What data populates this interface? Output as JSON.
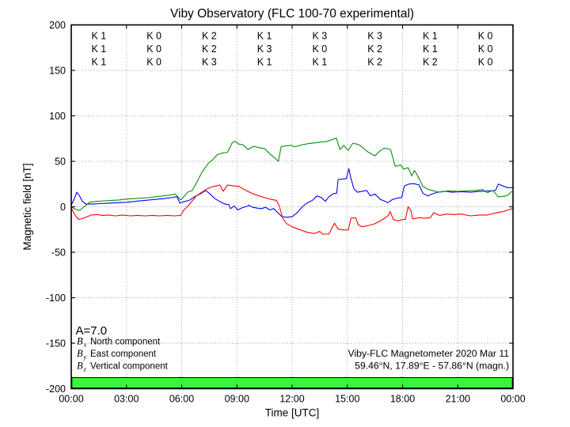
{
  "title": "Viby Observatory (FLC 100-70 experimental)",
  "axes": {
    "ylabel": "Magnetic field [nT]",
    "xlabel": "Time [UTC]",
    "yticks": [
      200,
      150,
      100,
      50,
      0,
      -50,
      -100,
      -150,
      -200
    ],
    "xticks": [
      "00:00",
      "03:00",
      "06:00",
      "09:00",
      "12:00",
      "15:00",
      "18:00",
      "21:00",
      "00:00"
    ],
    "ylim": [
      -200,
      200
    ],
    "xlim_hours": [
      0,
      24
    ],
    "grid": "dotted"
  },
  "k_indices": {
    "label_prefix": "K",
    "rows": [
      {
        "component": "Bx",
        "color": "#0000ff",
        "values": [
          1,
          0,
          2,
          1,
          3,
          3,
          1,
          0
        ]
      },
      {
        "component": "By",
        "color": "#ff0000",
        "values": [
          1,
          0,
          2,
          3,
          0,
          2,
          1,
          0
        ]
      },
      {
        "component": "Bz",
        "color": "#008a00",
        "values": [
          1,
          0,
          3,
          1,
          1,
          2,
          2,
          0
        ]
      }
    ]
  },
  "annotations": {
    "a_index": "A=7.0",
    "station_line1": "Viby-FLC Magnetometer 2020 Mar 11",
    "station_line2": "59.46°N, 17.89°E - 57.86°N (magn.)"
  },
  "legend": [
    {
      "symbol": "B",
      "sub": "x",
      "label": "North component",
      "color": "#0000ff"
    },
    {
      "symbol": "B",
      "sub": "y",
      "label": "East component",
      "color": "#ff0000"
    },
    {
      "symbol": "B",
      "sub": "z",
      "label": "Vertical component",
      "color": "#008a00"
    }
  ],
  "quality_bar": {
    "color": "#3df23d"
  },
  "colors": {
    "grid": "#999999",
    "frame": "#000000",
    "muted_text": "#909090"
  },
  "chart_data": {
    "type": "line",
    "title": "Viby Observatory (FLC 100-70 experimental)",
    "xlabel": "Time [UTC]",
    "ylabel": "Magnetic field [nT]",
    "xlim": [
      0,
      24
    ],
    "ylim": [
      -200,
      200
    ],
    "x_unit": "hours UTC",
    "legend_position": "lower left",
    "grid": "dotted",
    "series": [
      {
        "name": "Bx North component",
        "color": "#0000ff",
        "points": [
          [
            0,
            2
          ],
          [
            0.15,
            8
          ],
          [
            0.3,
            16
          ],
          [
            0.45,
            12
          ],
          [
            0.6,
            6
          ],
          [
            0.8,
            3
          ],
          [
            1.2,
            3
          ],
          [
            1.6,
            3.5
          ],
          [
            2,
            4
          ],
          [
            2.5,
            4.5
          ],
          [
            3,
            5
          ],
          [
            3.5,
            6
          ],
          [
            4,
            7
          ],
          [
            4.5,
            8
          ],
          [
            5,
            9
          ],
          [
            5.4,
            10
          ],
          [
            5.75,
            11
          ],
          [
            5.9,
            4
          ],
          [
            6.1,
            5.5
          ],
          [
            6.4,
            7
          ],
          [
            6.7,
            11
          ],
          [
            7,
            14
          ],
          [
            7.3,
            18
          ],
          [
            7.55,
            14
          ],
          [
            7.8,
            9
          ],
          [
            8.1,
            5.5
          ],
          [
            8.35,
            3
          ],
          [
            8.55,
            2.5
          ],
          [
            8.65,
            -2
          ],
          [
            8.85,
            1
          ],
          [
            9.05,
            -3.5
          ],
          [
            9.3,
            -1
          ],
          [
            9.55,
            0.5
          ],
          [
            9.65,
            1.7
          ],
          [
            9.85,
            -0.5
          ],
          [
            10.1,
            -1.5
          ],
          [
            10.35,
            -2
          ],
          [
            10.55,
            -0.5
          ],
          [
            10.8,
            -3.5
          ],
          [
            11,
            -2
          ],
          [
            11.2,
            -6
          ],
          [
            11.45,
            -11
          ],
          [
            11.7,
            -11.5
          ],
          [
            12,
            -11
          ],
          [
            12.3,
            -6
          ],
          [
            12.55,
            0
          ],
          [
            12.8,
            4
          ],
          [
            13.1,
            7
          ],
          [
            13.35,
            12
          ],
          [
            13.6,
            10
          ],
          [
            13.8,
            6
          ],
          [
            14,
            11
          ],
          [
            14.25,
            14.5
          ],
          [
            14.42,
            15
          ],
          [
            14.5,
            30
          ],
          [
            14.75,
            30.5
          ],
          [
            14.95,
            31
          ],
          [
            15.08,
            42
          ],
          [
            15.2,
            31
          ],
          [
            15.35,
            20
          ],
          [
            15.55,
            16
          ],
          [
            15.8,
            17
          ],
          [
            16.05,
            18
          ],
          [
            16.25,
            12
          ],
          [
            16.5,
            14
          ],
          [
            16.8,
            8
          ],
          [
            17.05,
            6
          ],
          [
            17.2,
            4.5
          ],
          [
            17.45,
            8
          ],
          [
            17.7,
            9.5
          ],
          [
            17.95,
            10
          ],
          [
            18.1,
            23
          ],
          [
            18.35,
            25
          ],
          [
            18.6,
            25.5
          ],
          [
            18.9,
            24
          ],
          [
            19.1,
            15
          ],
          [
            19.35,
            12
          ],
          [
            19.6,
            14
          ],
          [
            19.9,
            16
          ],
          [
            20.3,
            17
          ],
          [
            20.7,
            16
          ],
          [
            21.2,
            16.5
          ],
          [
            21.7,
            16
          ],
          [
            22.2,
            17
          ],
          [
            22.7,
            17.5
          ],
          [
            23.05,
            18
          ],
          [
            23.2,
            25
          ],
          [
            23.45,
            23
          ],
          [
            23.7,
            21
          ],
          [
            24,
            21
          ]
        ]
      },
      {
        "name": "By East component",
        "color": "#ff0000",
        "points": [
          [
            0,
            -1
          ],
          [
            0.2,
            -9
          ],
          [
            0.4,
            -14
          ],
          [
            0.6,
            -13
          ],
          [
            0.85,
            -11
          ],
          [
            1.1,
            -9
          ],
          [
            1.4,
            -8.5
          ],
          [
            1.7,
            -9.5
          ],
          [
            2,
            -9
          ],
          [
            2.4,
            -10
          ],
          [
            2.8,
            -9
          ],
          [
            3.2,
            -10
          ],
          [
            3.6,
            -9.5
          ],
          [
            4,
            -10
          ],
          [
            4.4,
            -9.5
          ],
          [
            4.8,
            -10
          ],
          [
            5.2,
            -9.5
          ],
          [
            5.6,
            -10
          ],
          [
            5.95,
            -9.5
          ],
          [
            6.1,
            -4
          ],
          [
            6.3,
            0
          ],
          [
            6.55,
            6
          ],
          [
            6.8,
            12
          ],
          [
            7.1,
            16
          ],
          [
            7.35,
            19.5
          ],
          [
            7.65,
            22
          ],
          [
            7.9,
            23
          ],
          [
            8.08,
            24
          ],
          [
            8.25,
            17
          ],
          [
            8.5,
            24
          ],
          [
            8.8,
            23
          ],
          [
            9.1,
            22.5
          ],
          [
            9.4,
            19
          ],
          [
            9.7,
            16
          ],
          [
            9.9,
            14
          ],
          [
            10.2,
            12
          ],
          [
            10.6,
            9.5
          ],
          [
            10.9,
            8
          ],
          [
            11.15,
            7
          ],
          [
            11.3,
            1
          ],
          [
            11.5,
            -13
          ],
          [
            11.7,
            -18.5
          ],
          [
            12,
            -22
          ],
          [
            12.4,
            -25
          ],
          [
            12.8,
            -28
          ],
          [
            13.2,
            -29.5
          ],
          [
            13.5,
            -27
          ],
          [
            13.65,
            -30
          ],
          [
            14,
            -30
          ],
          [
            14.3,
            -18
          ],
          [
            14.5,
            -24.5
          ],
          [
            14.8,
            -25.5
          ],
          [
            15.05,
            -25.5
          ],
          [
            15.2,
            -12.5
          ],
          [
            15.45,
            -12
          ],
          [
            15.6,
            -20
          ],
          [
            15.8,
            -22
          ],
          [
            16.05,
            -21
          ],
          [
            16.25,
            -20
          ],
          [
            16.45,
            -19
          ],
          [
            16.75,
            -16
          ],
          [
            17,
            -13
          ],
          [
            17.25,
            -9
          ],
          [
            17.32,
            -5
          ],
          [
            17.5,
            -14
          ],
          [
            17.75,
            -15.5
          ],
          [
            18,
            -14
          ],
          [
            18.15,
            -14
          ],
          [
            18.3,
            0
          ],
          [
            18.45,
            -4
          ],
          [
            18.55,
            -13.5
          ],
          [
            18.9,
            -12
          ],
          [
            19.2,
            -12.5
          ],
          [
            19.5,
            -12
          ],
          [
            19.7,
            -6.5
          ],
          [
            20,
            -9.5
          ],
          [
            20.4,
            -8
          ],
          [
            20.8,
            -8.5
          ],
          [
            21.2,
            -8
          ],
          [
            21.7,
            -10
          ],
          [
            22.2,
            -9
          ],
          [
            22.6,
            -9
          ],
          [
            23,
            -7
          ],
          [
            23.5,
            -5
          ],
          [
            23.8,
            -3
          ],
          [
            24,
            -2
          ]
        ]
      },
      {
        "name": "Bz Vertical component",
        "color": "#0a8f0a",
        "points": [
          [
            0,
            0
          ],
          [
            0.25,
            -3
          ],
          [
            0.45,
            -4
          ],
          [
            0.7,
            0
          ],
          [
            1,
            5
          ],
          [
            1.4,
            6
          ],
          [
            1.8,
            6.5
          ],
          [
            2.2,
            7
          ],
          [
            2.6,
            7.5
          ],
          [
            3,
            8.5
          ],
          [
            3.4,
            9
          ],
          [
            3.8,
            9.5
          ],
          [
            4.2,
            10
          ],
          [
            4.6,
            11
          ],
          [
            5,
            12
          ],
          [
            5.4,
            13
          ],
          [
            5.65,
            14
          ],
          [
            5.95,
            7.5
          ],
          [
            6.15,
            12
          ],
          [
            6.35,
            16.5
          ],
          [
            6.55,
            17.5
          ],
          [
            6.8,
            26
          ],
          [
            7.05,
            36
          ],
          [
            7.2,
            41
          ],
          [
            7.35,
            45
          ],
          [
            7.5,
            49
          ],
          [
            7.65,
            51
          ],
          [
            7.8,
            54.5
          ],
          [
            7.95,
            57.5
          ],
          [
            8.2,
            59
          ],
          [
            8.5,
            60
          ],
          [
            8.75,
            70.5
          ],
          [
            8.9,
            72
          ],
          [
            9.1,
            69
          ],
          [
            9.35,
            68
          ],
          [
            9.6,
            63
          ],
          [
            9.9,
            66.5
          ],
          [
            10.2,
            65
          ],
          [
            10.5,
            64
          ],
          [
            10.8,
            58
          ],
          [
            11.1,
            53
          ],
          [
            11.25,
            50
          ],
          [
            11.4,
            66
          ],
          [
            11.7,
            67
          ],
          [
            11.95,
            67.5
          ],
          [
            12.15,
            66
          ],
          [
            12.5,
            68
          ],
          [
            12.9,
            69.5
          ],
          [
            13.3,
            70.5
          ],
          [
            13.9,
            72
          ],
          [
            14.2,
            74
          ],
          [
            14.4,
            75.5
          ],
          [
            14.6,
            63
          ],
          [
            14.8,
            67.5
          ],
          [
            15.05,
            62
          ],
          [
            15.3,
            70
          ],
          [
            15.5,
            69
          ],
          [
            15.7,
            67.5
          ],
          [
            16.1,
            60.5
          ],
          [
            16.5,
            56
          ],
          [
            16.8,
            62
          ],
          [
            17,
            64.5
          ],
          [
            17.35,
            63
          ],
          [
            17.6,
            44.5
          ],
          [
            17.9,
            46
          ],
          [
            18.05,
            41.5
          ],
          [
            18.3,
            43
          ],
          [
            18.5,
            34
          ],
          [
            18.65,
            40
          ],
          [
            18.9,
            31
          ],
          [
            19.1,
            22.5
          ],
          [
            19.35,
            19.5
          ],
          [
            19.6,
            18
          ],
          [
            20,
            16
          ],
          [
            20.5,
            17.5
          ],
          [
            21,
            17
          ],
          [
            21.5,
            17.5
          ],
          [
            22,
            18
          ],
          [
            22.35,
            19
          ],
          [
            22.6,
            15.5
          ],
          [
            22.9,
            18
          ],
          [
            23.2,
            11
          ],
          [
            23.5,
            11.5
          ],
          [
            23.7,
            12.5
          ],
          [
            23.95,
            17
          ]
        ]
      }
    ]
  }
}
